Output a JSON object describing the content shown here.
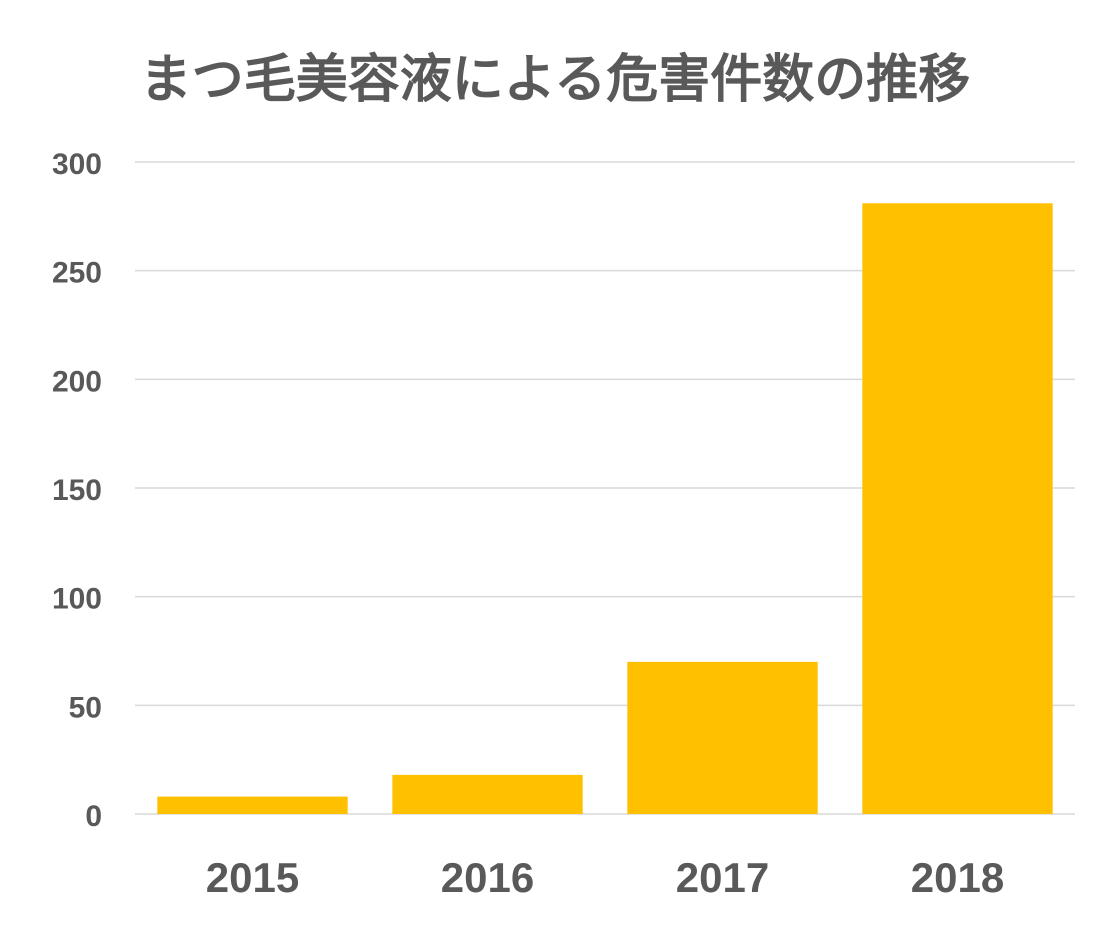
{
  "chart_data": {
    "type": "bar",
    "title": "まつ毛美容液による危害件数の推移",
    "categories": [
      "2015",
      "2016",
      "2017",
      "2018"
    ],
    "values": [
      8,
      18,
      70,
      281
    ],
    "ylim": [
      0,
      300
    ],
    "yticks": [
      "0",
      "50",
      "100",
      "150",
      "200",
      "250",
      "300"
    ],
    "grid": true,
    "legend": "none",
    "colors": {
      "bar": "#FFC000",
      "grid": "#D9D9D9",
      "text": "#595959"
    }
  }
}
